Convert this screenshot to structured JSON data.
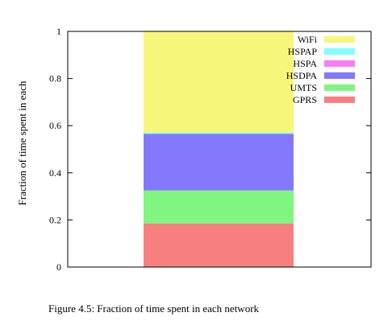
{
  "chart_data": {
    "type": "bar",
    "stacked": true,
    "categories": [
      ""
    ],
    "ylabel": "Fraction of time spent in each",
    "ylim": [
      0,
      1
    ],
    "yticks": [
      0,
      0.2,
      0.4,
      0.6,
      0.8,
      1
    ],
    "ytick_labels": [
      "0",
      "0.2",
      "0.4",
      "0.6",
      "0.8",
      "1"
    ],
    "grid": false,
    "legend_position": "top-right",
    "series": [
      {
        "name": "GPRS",
        "values": [
          0.185
        ],
        "color": "#f77f7f"
      },
      {
        "name": "UMTS",
        "values": [
          0.14
        ],
        "color": "#80f57f"
      },
      {
        "name": "HSDPA",
        "values": [
          0.24
        ],
        "color": "#8478fd"
      },
      {
        "name": "HSPA",
        "values": [
          0.0
        ],
        "color": "#fa7cf3"
      },
      {
        "name": "HSPAP",
        "values": [
          0.005
        ],
        "color": "#80ffff"
      },
      {
        "name": "WiFi",
        "values": [
          0.43
        ],
        "color": "#f6f67b"
      }
    ],
    "legend_order": [
      "WiFi",
      "HSPAP",
      "HSPA",
      "HSDPA",
      "UMTS",
      "GPRS"
    ]
  },
  "caption": "Figure 4.5: Fraction of time spent in each network"
}
